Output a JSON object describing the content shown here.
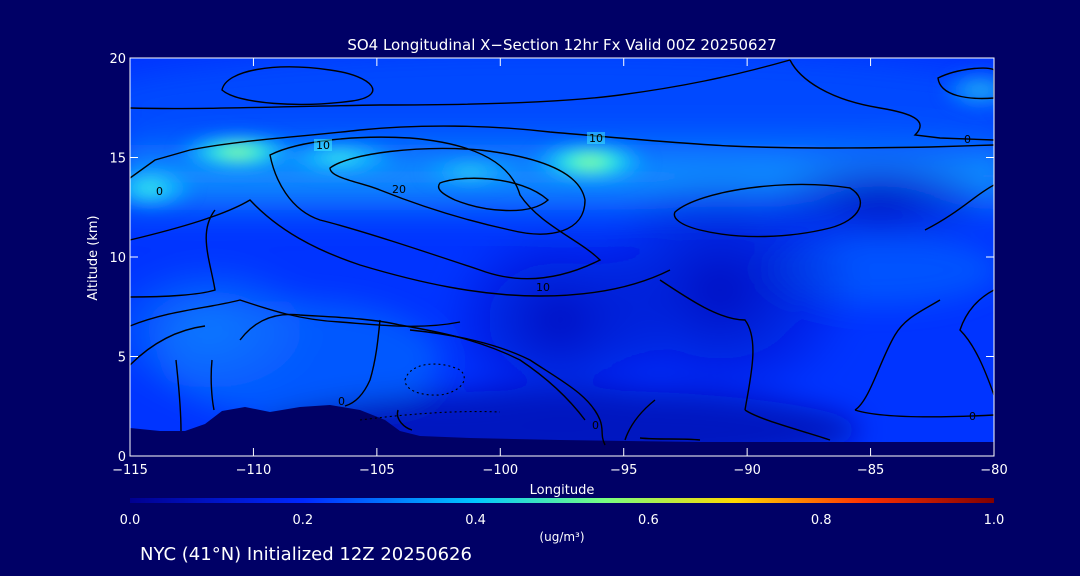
{
  "chart_data": {
    "type": "heatmap",
    "title": "SO4 Longitudinal X−Section 12hr  Fx Valid 00Z 20250627",
    "xlabel": "Longitude",
    "ylabel": "Altitude (km)",
    "xlim": [
      -115,
      -80
    ],
    "ylim": [
      0,
      20
    ],
    "x_ticks": [
      -115,
      -110,
      -105,
      -100,
      -95,
      -90,
      -85,
      -80
    ],
    "x_tick_labels": [
      "−115",
      "−110",
      "−105",
      "−100",
      "−95",
      "−90",
      "−85",
      "−80"
    ],
    "y_ticks": [
      0,
      5,
      10,
      15,
      20
    ],
    "y_tick_labels": [
      "0",
      "5",
      "10",
      "15",
      "20"
    ],
    "colorbar": {
      "min": 0.0,
      "max": 1.0,
      "ticks": [
        0.0,
        0.2,
        0.4,
        0.6,
        0.8,
        1.0
      ],
      "tick_labels": [
        "0.0",
        "0.2",
        "0.4",
        "0.6",
        "0.8",
        "1.0"
      ],
      "unit_label": "(ug/m³)"
    },
    "contour_labels": [
      "10",
      "10",
      "10",
      "20",
      "0",
      "0",
      "0",
      "0",
      "0"
    ],
    "high_regions": [
      {
        "lon": -110.5,
        "alt": 15.3,
        "value": 0.45
      },
      {
        "lon": -96.8,
        "alt": 14.6,
        "value": 0.55
      },
      {
        "lon": -114,
        "alt": 13.5,
        "value": 0.35
      },
      {
        "lon": -105,
        "alt": 14.8,
        "value": 0.3
      }
    ],
    "footer": "NYC (41°N) Initialized 12Z 20250626"
  }
}
